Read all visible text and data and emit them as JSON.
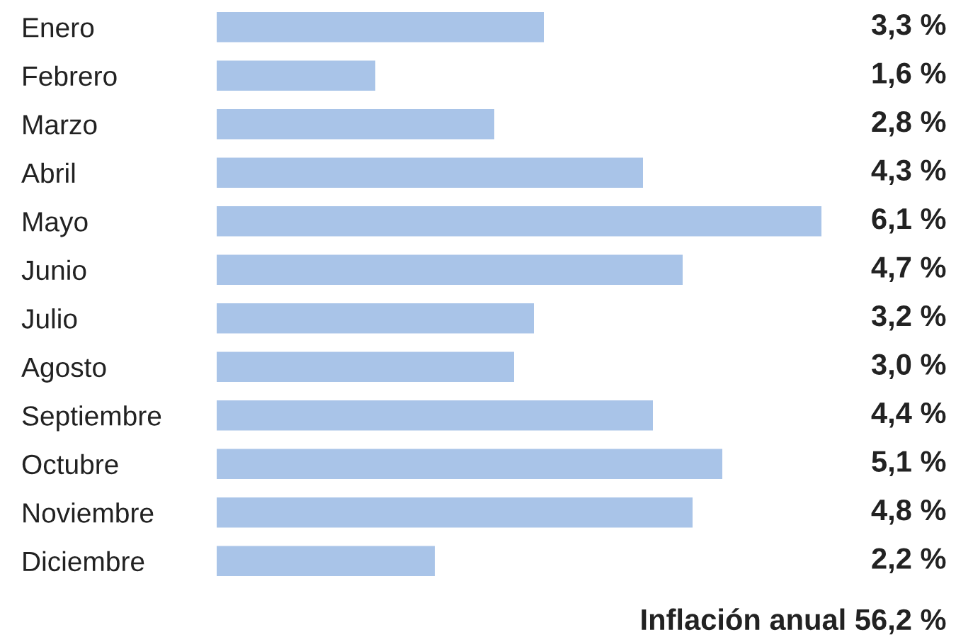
{
  "chart_data": {
    "type": "bar",
    "orientation": "horizontal",
    "categories": [
      "Enero",
      "Febrero",
      "Marzo",
      "Abril",
      "Mayo",
      "Junio",
      "Julio",
      "Agosto",
      "Septiembre",
      "Octubre",
      "Noviembre",
      "Diciembre"
    ],
    "values": [
      3.3,
      1.6,
      2.8,
      4.3,
      6.1,
      4.7,
      3.2,
      3.0,
      4.4,
      5.1,
      4.8,
      2.2
    ],
    "value_labels": [
      "3,3 %",
      "1,6 %",
      "2,8 %",
      "4,3 %",
      "6,1 %",
      "4,7 %",
      "3,2 %",
      "3,0 %",
      "4,4 %",
      "5,1 %",
      "4,8 %",
      "2,2 %"
    ],
    "color": "#a9c4e8",
    "annotations": [
      "Inflación anual 56,2 %"
    ]
  }
}
